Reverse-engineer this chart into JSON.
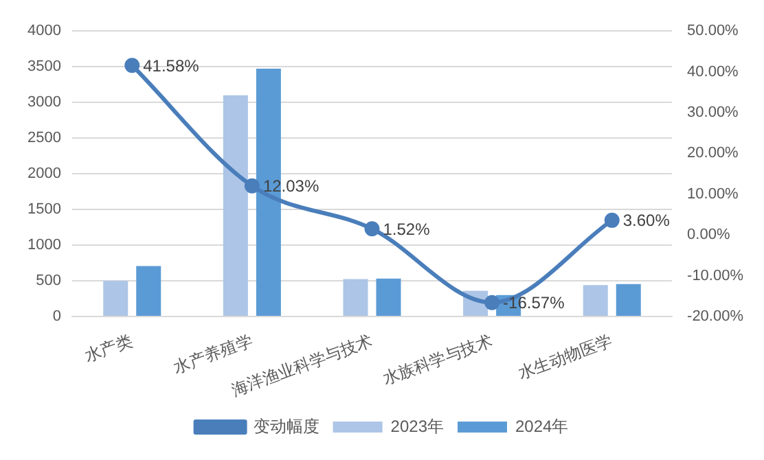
{
  "chart_data": {
    "type": "bar",
    "categories": [
      "水产类",
      "水产养殖学",
      "海洋渔业科学与技术",
      "水族科学与技术",
      "水生动物医学"
    ],
    "series": [
      {
        "name": "2023年",
        "color": "#adc5e7",
        "values": [
          500,
          3100,
          525,
          362,
          440
        ]
      },
      {
        "name": "2024年",
        "color": "#5b9bd5",
        "values": [
          708,
          3473,
          533,
          302,
          456
        ]
      },
      {
        "name": "变动幅度",
        "type": "line",
        "axis": "y2",
        "color": "#4a7ebb",
        "marker": "circle",
        "values": [
          41.58,
          12.03,
          1.52,
          -16.57,
          3.6
        ],
        "value_labels": [
          "41.58%",
          "12.03%",
          "1.52%",
          "-16.57%",
          "3.60%"
        ]
      }
    ],
    "ylim": [
      0,
      4000
    ],
    "yticks": [
      0,
      500,
      1000,
      1500,
      2000,
      2500,
      3000,
      3500,
      4000
    ],
    "y2lim": [
      -20,
      50
    ],
    "y2ticks": [
      {
        "value": -20,
        "label": "-20.00%"
      },
      {
        "value": -10,
        "label": "-10.00%"
      },
      {
        "value": 0,
        "label": "0.00%"
      },
      {
        "value": 10,
        "label": "10.00%"
      },
      {
        "value": 20,
        "label": "20.00%"
      },
      {
        "value": 30,
        "label": "30.00%"
      },
      {
        "value": 40,
        "label": "40.00%"
      },
      {
        "value": 50,
        "label": "50.00%"
      }
    ],
    "grid": "y",
    "legend": "bottom"
  }
}
